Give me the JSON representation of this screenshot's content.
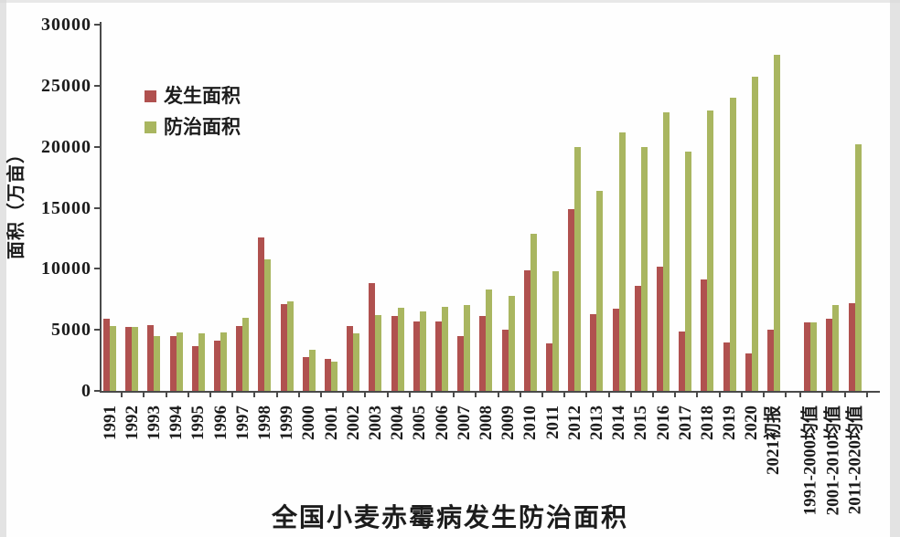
{
  "chart": {
    "title": "全国小麦赤霉病发生防治面积",
    "y_axis_title": "面积（万亩）",
    "colors": {
      "occurrence": "#b0514f",
      "control": "#a9b660",
      "axis": "#4a4a4a",
      "text": "#1c1c1c"
    }
  },
  "chart_data": {
    "type": "bar",
    "title": "全国小麦赤霉病发生防治面积",
    "xlabel": "",
    "ylabel": "面积（万亩）",
    "ylim": [
      0,
      30000
    ],
    "ytick_step": 5000,
    "yticks": [
      0,
      5000,
      10000,
      15000,
      20000,
      25000,
      30000
    ],
    "grid": false,
    "legend_position": "upper-left-inside",
    "categories": [
      "1991",
      "1992",
      "1993",
      "1994",
      "1995",
      "1996",
      "1997",
      "1998",
      "1999",
      "2000",
      "2001",
      "2002",
      "2003",
      "2004",
      "2005",
      "2006",
      "2007",
      "2008",
      "2009",
      "2010",
      "2011",
      "2012",
      "2013",
      "2014",
      "2015",
      "2016",
      "2017",
      "2018",
      "2019",
      "2020",
      "2021初报",
      "1991-2000均值",
      "2001-2010均值",
      "2011-2020均值"
    ],
    "series": [
      {
        "name": "发生面积",
        "color": "#b0514f",
        "values": [
          5900,
          5200,
          5400,
          4500,
          3700,
          4100,
          5300,
          12600,
          7100,
          2800,
          2600,
          5300,
          8800,
          6100,
          5700,
          5700,
          4500,
          6100,
          5000,
          9900,
          3900,
          14900,
          6300,
          6700,
          8600,
          10200,
          4900,
          9100,
          4000,
          3100,
          5000,
          5600,
          5900,
          7200
        ]
      },
      {
        "name": "防治面积",
        "color": "#a9b660",
        "values": [
          5300,
          5200,
          4500,
          4800,
          4700,
          4800,
          6000,
          10800,
          7300,
          3400,
          2400,
          4700,
          6200,
          6800,
          6500,
          6900,
          7000,
          8300,
          7800,
          12900,
          9800,
          20000,
          16400,
          21200,
          20000,
          22800,
          19600,
          23000,
          24000,
          25700,
          27500,
          5600,
          7000,
          20200
        ]
      }
    ]
  }
}
